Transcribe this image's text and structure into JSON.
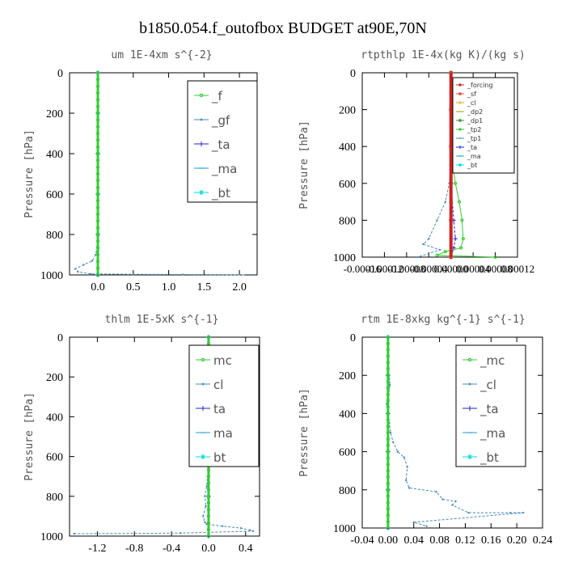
{
  "figure_title": "b1850.054.f_outofbox  BUDGET at90E,70N",
  "chart_data": [
    {
      "type": "line",
      "title": "um  1E-4xm s^{-2}",
      "ylabel": "Pressure [hPa]",
      "xlim": [
        -0.4,
        2.25
      ],
      "ylim": [
        1000,
        0
      ],
      "xticks": [
        "0.0",
        "0.5",
        "1.0",
        "1.5",
        "2.0"
      ],
      "xtick_values": [
        0,
        0.5,
        1.0,
        1.5,
        2.0
      ],
      "yticks": [
        "0",
        "200",
        "400",
        "600",
        "800",
        "1000"
      ],
      "ytick_values": [
        0,
        200,
        400,
        600,
        800,
        1000
      ],
      "legend_position": "top-right",
      "legend_style": "large",
      "series": [
        {
          "name": "_f",
          "color": "#33cc33",
          "marker": "circle",
          "x": [
            0,
            0,
            0,
            0,
            0,
            0,
            0,
            0,
            0,
            0,
            0,
            0,
            0,
            0,
            0,
            0,
            0,
            0,
            0,
            0,
            0,
            0,
            0,
            0,
            0,
            0,
            0,
            0,
            0,
            0,
            0
          ],
          "y": [
            0,
            33,
            67,
            100,
            133,
            167,
            200,
            233,
            267,
            300,
            333,
            367,
            400,
            433,
            467,
            500,
            533,
            567,
            600,
            633,
            667,
            700,
            733,
            767,
            800,
            833,
            867,
            900,
            933,
            967,
            1000
          ]
        },
        {
          "name": "_gf",
          "color": "#4488bb",
          "marker": "dot",
          "x": [
            0,
            0,
            0,
            0,
            0,
            -0.01,
            -0.03,
            -0.08,
            -0.2,
            -0.32,
            -0.28,
            -0.1,
            0.5,
            1.2,
            2.1
          ],
          "y": [
            0,
            200,
            400,
            600,
            800,
            860,
            900,
            930,
            950,
            970,
            985,
            995,
            997,
            998,
            1000
          ]
        },
        {
          "name": "_ta",
          "color": "#2222cc",
          "marker": "plus",
          "x": [
            0,
            0,
            0,
            0,
            0,
            0
          ],
          "y": [
            0,
            200,
            400,
            600,
            800,
            1000
          ]
        },
        {
          "name": "_ma",
          "color": "#2299dd",
          "marker": "dash",
          "x": [
            0,
            0,
            0,
            0,
            0,
            0
          ],
          "y": [
            0,
            200,
            400,
            600,
            800,
            1000
          ]
        },
        {
          "name": "_bt",
          "color": "#00dddd",
          "marker": "star",
          "x": [
            0,
            0,
            0,
            0,
            0,
            0
          ],
          "y": [
            0,
            200,
            400,
            600,
            800,
            1000
          ]
        }
      ]
    },
    {
      "type": "line",
      "title": "rtpthlp  1E-4x(kg K)/(kg s)",
      "ylabel": "Pressure [hPa]",
      "xlim": [
        -0.00016,
        0.00012
      ],
      "ylim": [
        1000,
        0
      ],
      "xticks": [
        "-0.00016",
        "-0.00012",
        "-0.00008",
        "-0.00004",
        "0.00000",
        "0.00004",
        "0.00008",
        "0.00012"
      ],
      "xtick_values": [
        -0.00016,
        -0.00012,
        -8e-05,
        -4e-05,
        0,
        4e-05,
        8e-05,
        0.00012
      ],
      "yticks": [
        "0",
        "200",
        "400",
        "600",
        "800",
        "1000"
      ],
      "ytick_values": [
        0,
        200,
        400,
        600,
        800,
        1000
      ],
      "legend_position": "top-right",
      "legend_style": "small",
      "series": [
        {
          "name": "_forcing",
          "color": "#cc2222",
          "marker": "circle",
          "x": [
            0,
            0,
            0,
            0,
            0,
            0,
            0,
            0,
            0,
            0,
            0
          ],
          "y": [
            0,
            100,
            200,
            300,
            400,
            500,
            600,
            700,
            800,
            900,
            1000
          ]
        },
        {
          "name": "_sf",
          "color": "#ee4444",
          "marker": "star",
          "x": [
            0,
            0,
            0,
            0,
            0,
            0
          ],
          "y": [
            0,
            200,
            400,
            600,
            800,
            1000
          ]
        },
        {
          "name": "_cl",
          "color": "#ddaa00",
          "marker": "plus",
          "x": [
            0,
            0,
            0,
            0,
            0,
            0
          ],
          "y": [
            0,
            200,
            400,
            600,
            800,
            1000
          ]
        },
        {
          "name": "_dp2",
          "color": "#aaaa00",
          "marker": "dash",
          "x": [
            0,
            0,
            0,
            0,
            0,
            0
          ],
          "y": [
            0,
            200,
            400,
            600,
            800,
            1000
          ]
        },
        {
          "name": "_dp1",
          "color": "#339933",
          "marker": "star",
          "x": [
            0,
            0,
            0,
            0,
            0,
            0
          ],
          "y": [
            0,
            200,
            400,
            600,
            800,
            1000
          ]
        },
        {
          "name": "_tp2",
          "color": "#33cc33",
          "marker": "circle",
          "x": [
            0,
            0,
            3e-06,
            8e-06,
            1.5e-05,
            2e-05,
            2.2e-05,
            1.8e-05,
            -1e-05,
            -2.5e-05,
            8e-05
          ],
          "y": [
            0,
            400,
            500,
            600,
            700,
            800,
            900,
            950,
            970,
            990,
            1000
          ]
        },
        {
          "name": "_tp1",
          "color": "#4488bb",
          "marker": "dot",
          "x": [
            0,
            0,
            -3e-06,
            -1e-05,
            -2.5e-05,
            -4e-05,
            -5e-05,
            -2e-05,
            -6e-05
          ],
          "y": [
            0,
            500,
            600,
            700,
            800,
            900,
            930,
            960,
            1000
          ]
        },
        {
          "name": "_ta",
          "color": "#2222cc",
          "marker": "plus",
          "x": [
            0,
            0,
            5e-06,
            8e-06,
            5e-06,
            0
          ],
          "y": [
            0,
            600,
            800,
            900,
            950,
            1000
          ]
        },
        {
          "name": "_ma",
          "color": "#2299dd",
          "marker": "dash",
          "x": [
            0,
            0,
            0,
            0,
            0,
            0
          ],
          "y": [
            0,
            200,
            400,
            600,
            800,
            1000
          ]
        },
        {
          "name": "_bt",
          "color": "#00dddd",
          "marker": "star",
          "x": [
            0,
            0,
            0,
            0,
            0,
            0
          ],
          "y": [
            0,
            200,
            400,
            600,
            800,
            1000
          ]
        }
      ]
    },
    {
      "type": "line",
      "title": "thlm  1E-5xK s^{-1}",
      "ylabel": "Pressure [hPa]",
      "xlim": [
        -1.5,
        0.55
      ],
      "ylim": [
        1000,
        0
      ],
      "xticks": [
        "-1.2",
        "-0.8",
        "-0.4",
        "0.0",
        "0.4"
      ],
      "xtick_values": [
        -1.2,
        -0.8,
        -0.4,
        0,
        0.4
      ],
      "yticks": [
        "0",
        "200",
        "400",
        "600",
        "800",
        "1000"
      ],
      "ytick_values": [
        0,
        200,
        400,
        600,
        800,
        1000
      ],
      "legend_position": "top-right",
      "legend_style": "large",
      "series": [
        {
          "name": "mc",
          "color": "#33cc33",
          "marker": "circle",
          "x": [
            0,
            0,
            0,
            0,
            0,
            0,
            0,
            0,
            0,
            0,
            0,
            0,
            0,
            0,
            0,
            0,
            0,
            0,
            0,
            0,
            0,
            0,
            0,
            0,
            0,
            0,
            0,
            0,
            0,
            0,
            0
          ],
          "y": [
            0,
            33,
            67,
            100,
            133,
            167,
            200,
            233,
            267,
            300,
            333,
            367,
            400,
            433,
            467,
            500,
            533,
            567,
            600,
            633,
            667,
            700,
            733,
            767,
            800,
            833,
            867,
            900,
            933,
            967,
            1000
          ]
        },
        {
          "name": "cl",
          "color": "#4488bb",
          "marker": "dot",
          "x": [
            0,
            0,
            -0.01,
            -0.02,
            -0.04,
            -0.03,
            -0.06,
            -0.04,
            -0.02,
            0.15,
            0.35,
            0.45,
            0.48,
            -0.3,
            -1.45
          ],
          "y": [
            0,
            600,
            700,
            750,
            800,
            850,
            900,
            930,
            940,
            950,
            960,
            970,
            975,
            985,
            988
          ]
        },
        {
          "name": "ta",
          "color": "#2222cc",
          "marker": "plus",
          "x": [
            0,
            0,
            0,
            0,
            0,
            0
          ],
          "y": [
            0,
            200,
            400,
            600,
            800,
            1000
          ]
        },
        {
          "name": "ma",
          "color": "#2299dd",
          "marker": "dash",
          "x": [
            0,
            0,
            0,
            0,
            0,
            0
          ],
          "y": [
            0,
            200,
            400,
            600,
            800,
            1000
          ]
        },
        {
          "name": "bt",
          "color": "#00dddd",
          "marker": "star",
          "x": [
            0,
            0,
            0,
            0,
            0,
            0
          ],
          "y": [
            0,
            200,
            400,
            600,
            800,
            1000
          ]
        }
      ]
    },
    {
      "type": "line",
      "title": "rtm  1E-8xkg kg^{-1} s^{-1}",
      "ylabel": "Pressure [hPa]",
      "xlim": [
        -0.04,
        0.24
      ],
      "ylim": [
        1000,
        0
      ],
      "xticks": [
        "-0.04",
        "0.00",
        "0.04",
        "0.08",
        "0.12",
        "0.16",
        "0.20",
        "0.24"
      ],
      "xtick_values": [
        -0.04,
        0,
        0.04,
        0.08,
        0.12,
        0.16,
        0.2,
        0.24
      ],
      "yticks": [
        "0",
        "200",
        "400",
        "600",
        "800",
        "1000"
      ],
      "ytick_values": [
        0,
        200,
        400,
        600,
        800,
        1000
      ],
      "legend_position": "top-right",
      "legend_style": "large",
      "series": [
        {
          "name": "_mc",
          "color": "#33cc33",
          "marker": "circle",
          "x": [
            0,
            0,
            0,
            0,
            0,
            0,
            0,
            0,
            0,
            0,
            0,
            0,
            0,
            0,
            0,
            0,
            0,
            0,
            0,
            0,
            0,
            0,
            0,
            0,
            0,
            0,
            0,
            0,
            0,
            0,
            0
          ],
          "y": [
            0,
            33,
            67,
            100,
            133,
            167,
            200,
            233,
            267,
            300,
            333,
            367,
            400,
            433,
            467,
            500,
            533,
            567,
            600,
            633,
            667,
            700,
            733,
            767,
            800,
            833,
            867,
            900,
            933,
            967,
            1000
          ]
        },
        {
          "name": "_cl",
          "color": "#4488bb",
          "marker": "dot",
          "x": [
            0,
            0,
            0.002,
            0.003,
            0.001,
            -0.002,
            -0.001,
            0.002,
            0.004,
            0.008,
            0.015,
            0.025,
            0.03,
            0.028,
            0.033,
            0.075,
            0.085,
            0.105,
            0.1,
            0.125,
            0.19,
            0.21,
            0.04,
            0.06
          ],
          "y": [
            0,
            150,
            200,
            250,
            300,
            350,
            400,
            450,
            500,
            550,
            600,
            630,
            680,
            750,
            790,
            810,
            850,
            860,
            880,
            920,
            920,
            920,
            970,
            990
          ]
        },
        {
          "name": "_ta",
          "color": "#2222cc",
          "marker": "plus",
          "x": [
            0,
            0,
            0,
            0,
            0,
            0
          ],
          "y": [
            0,
            200,
            400,
            600,
            800,
            1000
          ]
        },
        {
          "name": "_ma",
          "color": "#2299dd",
          "marker": "dash",
          "x": [
            0,
            0,
            0,
            0,
            0,
            0
          ],
          "y": [
            0,
            200,
            400,
            600,
            800,
            1000
          ]
        },
        {
          "name": "_bt",
          "color": "#00dddd",
          "marker": "star",
          "x": [
            0,
            0,
            0,
            0,
            0,
            0
          ],
          "y": [
            0,
            200,
            400,
            600,
            800,
            1000
          ]
        }
      ]
    }
  ]
}
